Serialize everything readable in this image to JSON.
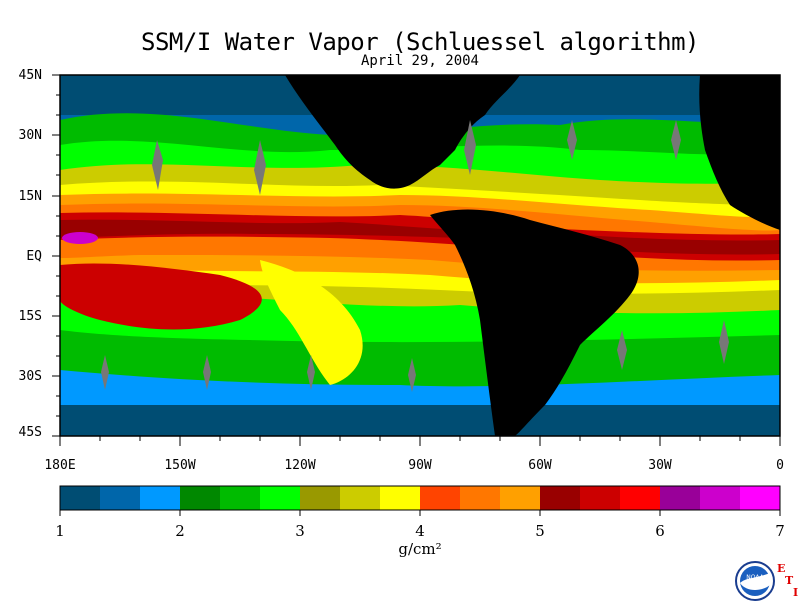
{
  "title": "SSM/I Water Vapor (Schluessel algorithm)",
  "date": "April 29, 2004",
  "lat_labels": [
    "45N",
    "30N",
    "15N",
    "EQ",
    "15S",
    "30S",
    "45S"
  ],
  "lon_labels": [
    "180E",
    "150W",
    "120W",
    "90W",
    "60W",
    "30W",
    "0"
  ],
  "colorbar": {
    "colors": [
      "#004d73",
      "#0066aa",
      "#0099ff",
      "#008800",
      "#00bb00",
      "#00ff00",
      "#999900",
      "#cccc00",
      "#ffff00",
      "#ff4400",
      "#ff7700",
      "#ffa000",
      "#990000",
      "#cc0000",
      "#ff0000",
      "#990099",
      "#cc00cc",
      "#ff00ff"
    ],
    "tick_labels": [
      "1",
      "2",
      "3",
      "4",
      "5",
      "6",
      "7"
    ],
    "units": "g/cm²"
  },
  "logo": {
    "text": "NOAA",
    "letters": [
      "E",
      "T",
      "I"
    ]
  },
  "colors": {
    "land": "#000000",
    "ocean_low": "#0066aa",
    "ocean_mid": "#00bb00",
    "ocean_high": "#cc0000",
    "missing": "#777777"
  }
}
